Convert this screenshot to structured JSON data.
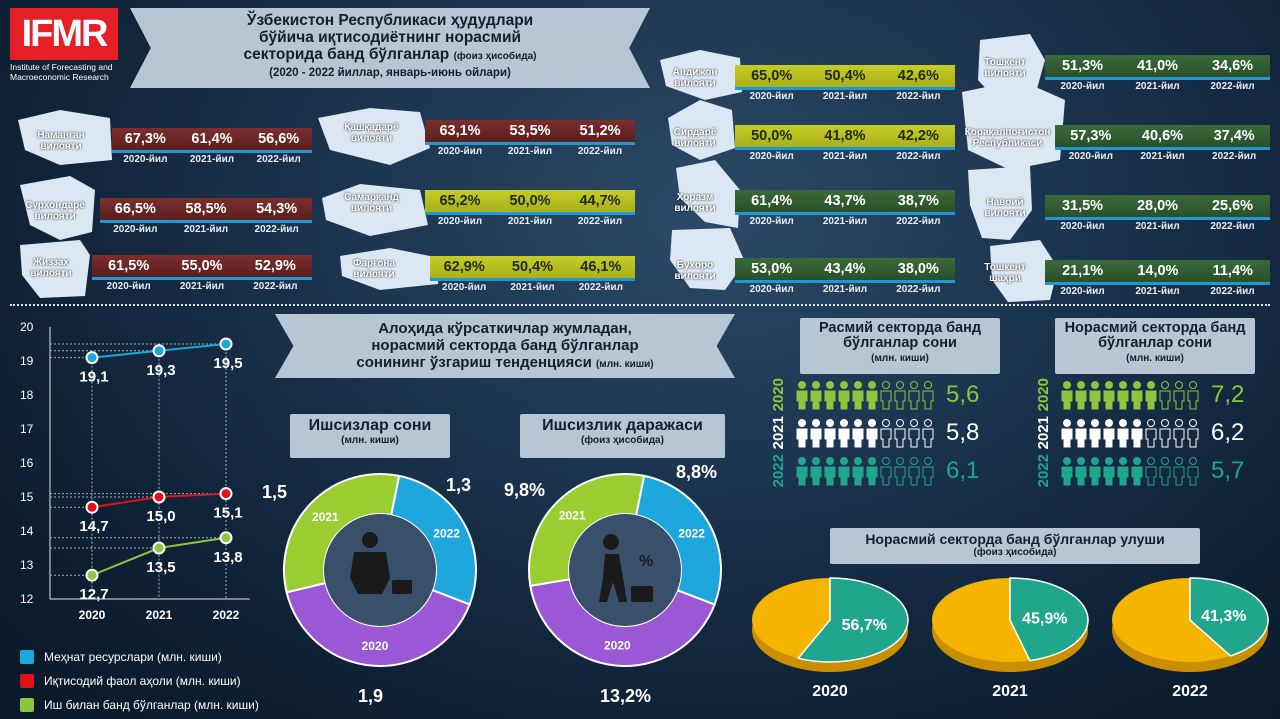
{
  "logo": {
    "text": "IFMR",
    "subtitle_line1": "Institute of Forecasting and",
    "subtitle_line2": "Macroeconomic Research"
  },
  "title": {
    "line1": "Ўзбекистон Республикаси ҳудудлари",
    "line2": "бўйича иқтисодиётнинг норасмий",
    "line3": "секторида банд бўлганлар",
    "line3_note": "(фоиз ҳисобида)",
    "line4": "(2020 - 2022 йиллар, январь-июнь ойлари)"
  },
  "years": [
    "2020-йил",
    "2021-йил",
    "2022-йил"
  ],
  "regions": [
    {
      "name1": "Наманган",
      "name2": "вилояти",
      "values": [
        "67,3%",
        "61,4%",
        "56,6%"
      ],
      "color": "red"
    },
    {
      "name1": "Сурхондарё",
      "name2": "вилояти",
      "values": [
        "66,5%",
        "58,5%",
        "54,3%"
      ],
      "color": "red"
    },
    {
      "name1": "Жиззах",
      "name2": "вилояти",
      "values": [
        "61,5%",
        "55,0%",
        "52,9%"
      ],
      "color": "red"
    },
    {
      "name1": "Қашқадарё",
      "name2": "вилояти",
      "values": [
        "63,1%",
        "53,5%",
        "51,2%"
      ],
      "color": "red"
    },
    {
      "name1": "Самарқанд",
      "name2": "вилояти",
      "values": [
        "65,2%",
        "50,0%",
        "44,7%"
      ],
      "color": "olive"
    },
    {
      "name1": "Фарғона",
      "name2": "вилояти",
      "values": [
        "62,9%",
        "50,4%",
        "46,1%"
      ],
      "color": "olive"
    },
    {
      "name1": "Андижон",
      "name2": "вилояти",
      "values": [
        "65,0%",
        "50,4%",
        "42,6%"
      ],
      "color": "olive"
    },
    {
      "name1": "Сирдарё",
      "name2": "вилояти",
      "values": [
        "50,0%",
        "41,8%",
        "42,2%"
      ],
      "color": "olive"
    },
    {
      "name1": "Хоразм",
      "name2": "вилояти",
      "values": [
        "61,4%",
        "43,7%",
        "38,7%"
      ],
      "color": "green"
    },
    {
      "name1": "Бухоро",
      "name2": "вилояти",
      "values": [
        "53,0%",
        "43,4%",
        "38,0%"
      ],
      "color": "green"
    },
    {
      "name1": "Тошкент",
      "name2": "вилояти",
      "values": [
        "51,3%",
        "41,0%",
        "34,6%"
      ],
      "color": "green"
    },
    {
      "name1": "Қорақалпоғистон",
      "name2": "Республикаси",
      "values": [
        "57,3%",
        "40,6%",
        "37,4%"
      ],
      "color": "green"
    },
    {
      "name1": "Навоий",
      "name2": "вилояти",
      "values": [
        "31,5%",
        "28,0%",
        "25,6%"
      ],
      "color": "green"
    },
    {
      "name1": "Тошкент",
      "name2": "шаҳри",
      "values": [
        "21,1%",
        "14,0%",
        "11,4%"
      ],
      "color": "green"
    }
  ],
  "mid_title": {
    "line1": "Алоҳида кўрсаткичлар жумладан,",
    "line2": "норасмий секторда банд бўлганлар",
    "line3": "сонининг ўзгариш тенденцияси",
    "note": "(млн. киши)"
  },
  "colors": {
    "blue": "#1ea7dc",
    "red": "#e3111a",
    "green": "#8cc63e",
    "teal": "#1fa68c",
    "yellow": "#f5b400",
    "purple": "#9a57d6",
    "lime": "#9acd32"
  },
  "chart_data": [
    {
      "type": "line",
      "x": [
        "2020",
        "2021",
        "2022"
      ],
      "ylim": [
        12,
        20
      ],
      "yticks": [
        "12",
        "13",
        "14",
        "15",
        "16",
        "17",
        "18",
        "19",
        "20"
      ],
      "series": [
        {
          "name": "Меҳнат ресурслари (млн. киши)",
          "values": [
            19.1,
            19.3,
            19.5
          ],
          "labels": [
            "19,1",
            "19,3",
            "19,5"
          ]
        },
        {
          "name": "Иқтисодий фаол аҳоли (млн. киши)",
          "values": [
            14.7,
            15.0,
            15.1
          ],
          "labels": [
            "14,7",
            "15,0",
            "15,1"
          ]
        },
        {
          "name": "Иш билан банд бўлганлар (млн. киши)",
          "values": [
            12.7,
            13.5,
            13.8
          ],
          "labels": [
            "12,7",
            "13,5",
            "13,8"
          ]
        }
      ]
    },
    {
      "type": "pie",
      "title": "Ишсизлар сони",
      "subtitle": "(млн. киши)",
      "categories": [
        "2022",
        "2020",
        "2021"
      ],
      "values": [
        1.3,
        1.9,
        1.5
      ],
      "labels": [
        "1,3",
        "1,9",
        "1,5"
      ]
    },
    {
      "type": "pie",
      "title": "Ишсизлик даражаси",
      "subtitle": "(фоиз ҳисобида)",
      "categories": [
        "2022",
        "2020",
        "2021"
      ],
      "values": [
        8.8,
        13.2,
        9.8
      ],
      "labels": [
        "8,8%",
        "13,2%",
        "9,8%"
      ]
    },
    {
      "type": "table",
      "title": "Расмий секторда банд бўлганлар сони",
      "subtitle": "(млн. киши)",
      "categories": [
        "2020",
        "2021",
        "2022"
      ],
      "values": [
        5.6,
        5.8,
        6.1
      ],
      "labels": [
        "5,6",
        "5,8",
        "6,1"
      ]
    },
    {
      "type": "table",
      "title": "Норасмий секторда банд бўлганлар сони",
      "subtitle": "(млн. киши)",
      "categories": [
        "2020",
        "2021",
        "2022"
      ],
      "values": [
        7.2,
        6.2,
        5.7
      ],
      "labels": [
        "7,2",
        "6,2",
        "5,7"
      ]
    },
    {
      "type": "pie",
      "title": "Норасмий секторда банд бўлганлар улуши",
      "subtitle": "(фоиз ҳисобида)",
      "categories": [
        "2020",
        "2021",
        "2022"
      ],
      "values": [
        56.7,
        45.9,
        41.3
      ],
      "labels": [
        "56,7%",
        "45,9%",
        "41,3%"
      ]
    }
  ]
}
